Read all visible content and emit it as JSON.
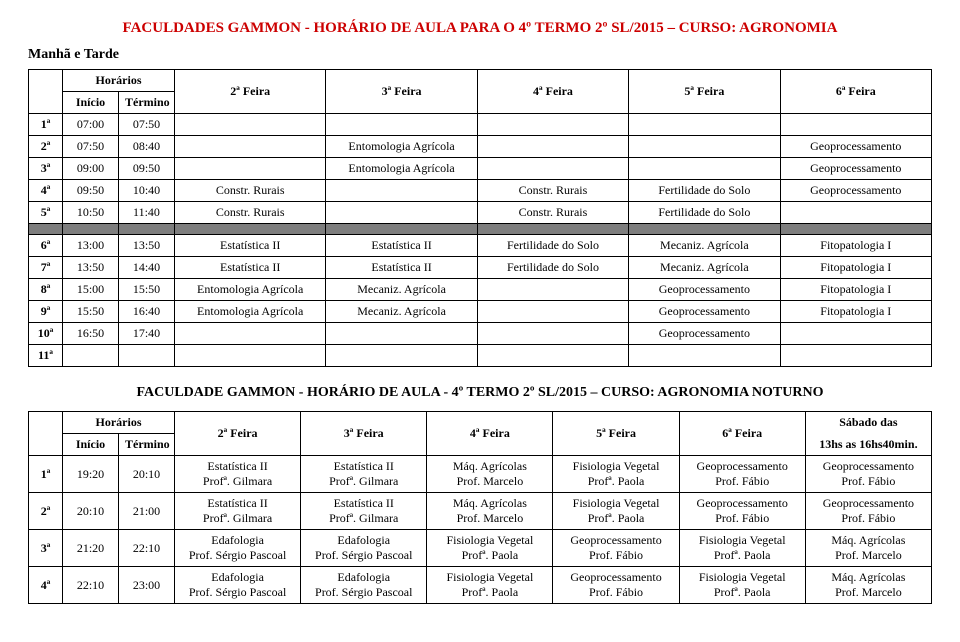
{
  "header": {
    "title": "FACULDADES GAMMON  -  HORÁRIO DE AULA PARA O 4º TERMO 2º SL/2015 – CURSO: AGRONOMIA",
    "subtitle": "Manhã e Tarde"
  },
  "top_table": {
    "head": {
      "horarios": "Horários",
      "inicio": "Início",
      "termino": "Término",
      "d2": "2ª Feira",
      "d3": "3ª Feira",
      "d4": "4ª Feira",
      "d5": "5ª Feira",
      "d6": "6ª Feira"
    },
    "rows": [
      {
        "n": "1ª",
        "i": "07:00",
        "t": "07:50",
        "c2": "",
        "c3": "",
        "c4": "",
        "c5": "",
        "c6": ""
      },
      {
        "n": "2ª",
        "i": "07:50",
        "t": "08:40",
        "c2": "",
        "c3": "Entomologia Agrícola",
        "c4": "",
        "c5": "",
        "c6": "Geoprocessamento"
      },
      {
        "n": "3ª",
        "i": "09:00",
        "t": "09:50",
        "c2": "",
        "c3": "Entomologia Agrícola",
        "c4": "",
        "c5": "",
        "c6": "Geoprocessamento"
      },
      {
        "n": "4ª",
        "i": "09:50",
        "t": "10:40",
        "c2": "Constr. Rurais",
        "c3": "",
        "c4": "Constr. Rurais",
        "c5": "Fertilidade do Solo",
        "c6": "Geoprocessamento"
      },
      {
        "n": "5ª",
        "i": "10:50",
        "t": "11:40",
        "c2": "Constr. Rurais",
        "c3": "",
        "c4": "Constr. Rurais",
        "c5": "Fertilidade do Solo",
        "c6": ""
      }
    ],
    "rows2": [
      {
        "n": "6ª",
        "i": "13:00",
        "t": "13:50",
        "c2": "Estatística II",
        "c3": "Estatística II",
        "c4": "Fertilidade do Solo",
        "c5": "Mecaniz. Agrícola",
        "c6": "Fitopatologia I"
      },
      {
        "n": "7ª",
        "i": "13:50",
        "t": "14:40",
        "c2": "Estatística II",
        "c3": "Estatística II",
        "c4": "Fertilidade do Solo",
        "c5": "Mecaniz. Agrícola",
        "c6": "Fitopatologia I"
      },
      {
        "n": "8ª",
        "i": "15:00",
        "t": "15:50",
        "c2": "Entomologia Agrícola",
        "c3": "Mecaniz. Agrícola",
        "c4": "",
        "c5": "Geoprocessamento",
        "c6": "Fitopatologia I"
      },
      {
        "n": "9ª",
        "i": "15:50",
        "t": "16:40",
        "c2": "Entomologia Agrícola",
        "c3": "Mecaniz. Agrícola",
        "c4": "",
        "c5": "Geoprocessamento",
        "c6": "Fitopatologia I"
      },
      {
        "n": "10ª",
        "i": "16:50",
        "t": "17:40",
        "c2": "",
        "c3": "",
        "c4": "",
        "c5": "Geoprocessamento",
        "c6": ""
      },
      {
        "n": "11ª",
        "i": "",
        "t": "",
        "c2": "",
        "c3": "",
        "c4": "",
        "c5": "",
        "c6": ""
      }
    ]
  },
  "title2": "FACULDADE GAMMON  -  HORÁRIO DE AULA -  4º TERMO 2º SL/2015 – CURSO: AGRONOMIA NOTURNO",
  "bottom_table": {
    "head": {
      "horarios": "Horários",
      "inicio": "Início",
      "termino": "Término",
      "d2": "2ª Feira",
      "d3": "3ª Feira",
      "d4": "4ª Feira",
      "d5": "5ª Feira",
      "d6": "6ª Feira",
      "sat1": "Sábado das",
      "sat2": "13hs as 16hs40min."
    },
    "rows": [
      {
        "n": "1ª",
        "i": "19:20",
        "t": "20:10",
        "c2a": "Estatística II",
        "c2b": "Profª. Gilmara",
        "c3a": "Estatística II",
        "c3b": "Profª. Gilmara",
        "c4a": "Máq. Agrícolas",
        "c4b": "Prof. Marcelo",
        "c5a": "Fisiologia Vegetal",
        "c5b": "Profª. Paola",
        "c6a": "Geoprocessamento",
        "c6b": "Prof. Fábio",
        "c7a": "Geoprocessamento",
        "c7b": "Prof. Fábio"
      },
      {
        "n": "2ª",
        "i": "20:10",
        "t": "21:00",
        "c2a": "Estatística II",
        "c2b": "Profª. Gilmara",
        "c3a": "Estatística II",
        "c3b": "Profª. Gilmara",
        "c4a": "Máq. Agrícolas",
        "c4b": "Prof. Marcelo",
        "c5a": "Fisiologia Vegetal",
        "c5b": "Profª. Paola",
        "c6a": "Geoprocessamento",
        "c6b": "Prof. Fábio",
        "c7a": "Geoprocessamento",
        "c7b": "Prof. Fábio"
      },
      {
        "n": "3ª",
        "i": "21:20",
        "t": "22:10",
        "c2a": "Edafologia",
        "c2b": "Prof. Sérgio Pascoal",
        "c3a": "Edafologia",
        "c3b": "Prof. Sérgio Pascoal",
        "c4a": "Fisiologia Vegetal",
        "c4b": "Profª. Paola",
        "c5a": "Geoprocessamento",
        "c5b": "Prof. Fábio",
        "c6a": "Fisiologia Vegetal",
        "c6b": "Profª. Paola",
        "c7a": "Máq. Agrícolas",
        "c7b": "Prof. Marcelo"
      },
      {
        "n": "4ª",
        "i": "22:10",
        "t": "23:00",
        "c2a": "Edafologia",
        "c2b": "Prof. Sérgio Pascoal",
        "c3a": "Edafologia",
        "c3b": "Prof. Sérgio Pascoal",
        "c4a": "Fisiologia Vegetal",
        "c4b": "Profª. Paola",
        "c5a": "Geoprocessamento",
        "c5b": "Prof. Fábio",
        "c6a": "Fisiologia Vegetal",
        "c6b": "Profª. Paola",
        "c7a": "Máq. Agrícolas",
        "c7b": "Prof. Marcelo"
      }
    ]
  }
}
